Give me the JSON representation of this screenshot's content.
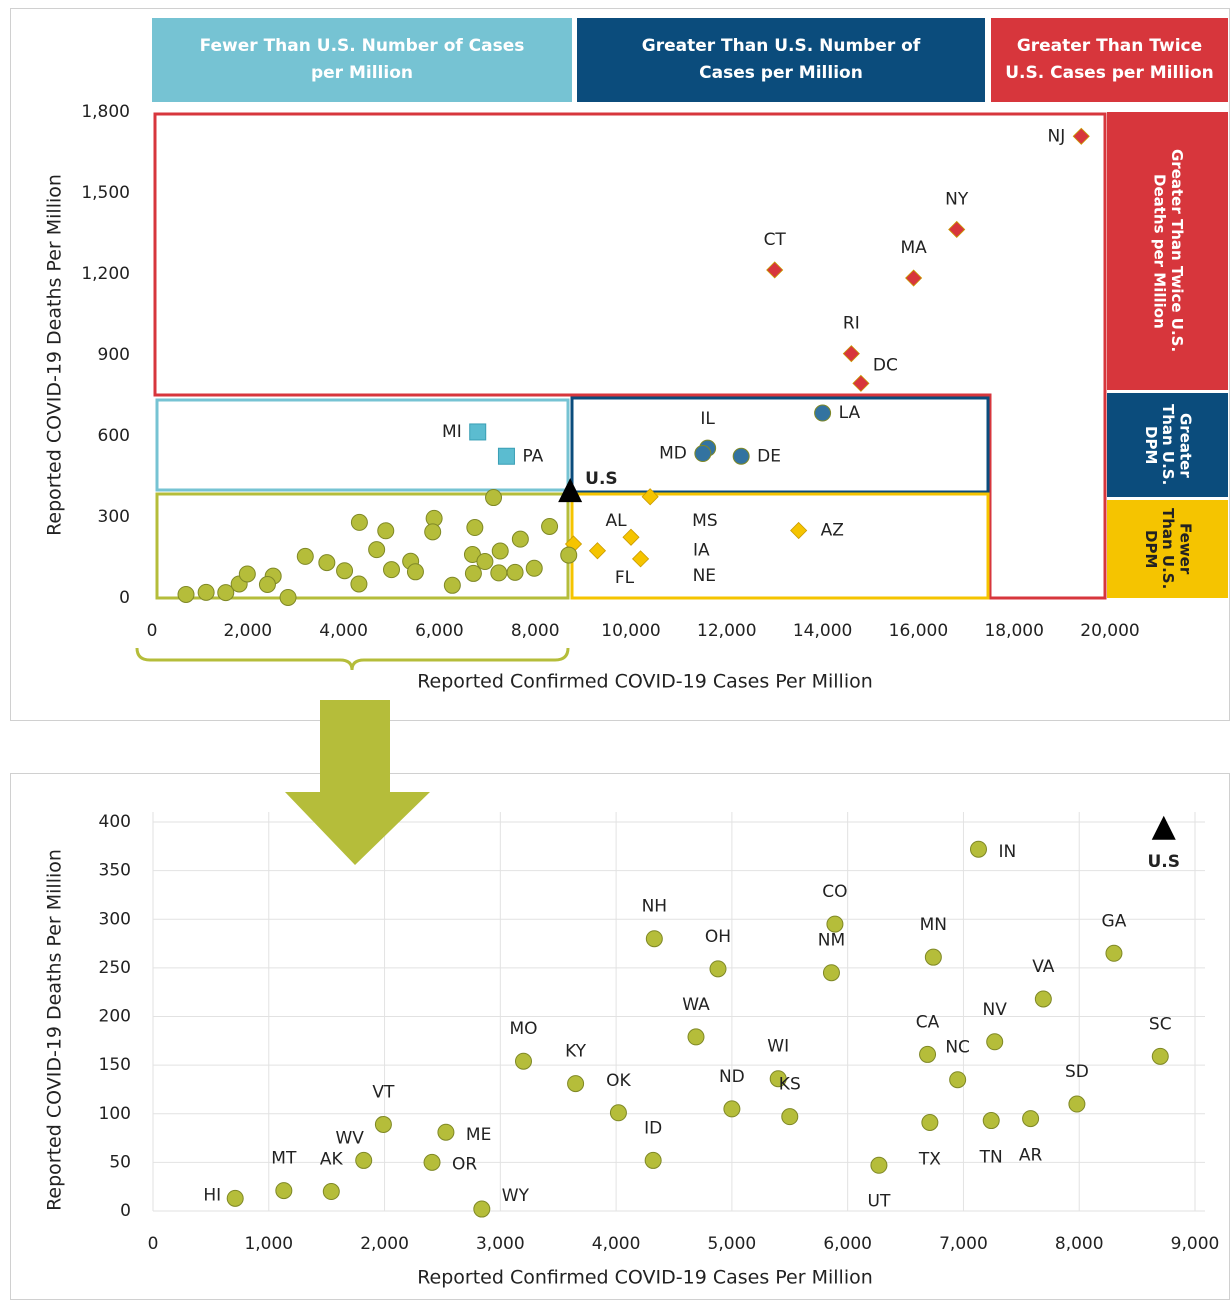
{
  "chart_data": [
    {
      "type": "scatter",
      "x_label": "Reported Confirmed COVID-19 Cases Per Million",
      "y_label": "Reported COVID-19 Deaths Per Million",
      "xlim": [
        0,
        20000
      ],
      "ylim": [
        0,
        1800
      ],
      "xticks": [
        0,
        {
          "value": 2000,
          "label": "2,000"
        },
        {
          "value": 4000,
          "label": "4,000"
        },
        {
          "value": 6000,
          "label": "6,000"
        },
        {
          "value": 8000,
          "label": "8,000"
        },
        {
          "value": 10000,
          "label": "10,000"
        },
        {
          "value": 12000,
          "label": "12,000"
        },
        {
          "value": 14000,
          "label": "14,000"
        },
        {
          "value": 16000,
          "label": "16,000"
        },
        {
          "value": 18000,
          "label": "18,000"
        },
        {
          "value": 20000,
          "label": "20,000"
        }
      ],
      "yticks": [
        0,
        300,
        600,
        900,
        {
          "value": 1200,
          "label": "1,200"
        },
        {
          "value": 1500,
          "label": "1,500"
        },
        {
          "value": 1800,
          "label": "1,800"
        }
      ],
      "grid": false,
      "top_headers": [
        {
          "text": "Fewer Than U.S. Number of Cases per Million",
          "color": "#76c3d3"
        },
        {
          "text": "Greater Than U.S. Number of Cases per Million",
          "color": "#0b4c7c"
        },
        {
          "text": "Greater Than Twice U.S. Cases per Million",
          "color": "#d7363c"
        }
      ],
      "side_headers": [
        {
          "text": "Greater Than Twice U.S. Deaths per Million",
          "color": "#d7363c"
        },
        {
          "text": "Greater Than U.S. DPM",
          "color": "#0b4c7c"
        },
        {
          "text": "Fewer Than U.S. DPM",
          "color": "#f5c400"
        }
      ],
      "series": [
        {
          "marker": "diamond",
          "color": "#d7363c",
          "labels": [
            "NJ",
            "NY",
            "MA",
            "CT",
            "RI",
            "DC"
          ],
          "x": [
            19400,
            16800,
            15900,
            13000,
            14600,
            14800
          ],
          "values": [
            1710,
            1365,
            1185,
            1215,
            905,
            795
          ]
        },
        {
          "marker": "circle",
          "color": "#3373a0",
          "labels": [
            "LA",
            "IL",
            "MD",
            "DE"
          ],
          "x": [
            14000,
            11600,
            11500,
            12300
          ],
          "values": [
            685,
            555,
            535,
            525
          ]
        },
        {
          "marker": "square",
          "color": "#5bbcd0",
          "labels": [
            "MI",
            "PA"
          ],
          "x": [
            6800,
            7400
          ],
          "values": [
            615,
            525
          ]
        },
        {
          "marker": "diamond",
          "color": "#f5c400",
          "labels": [
            "MS",
            "AZ",
            "AL",
            "IA",
            "FL",
            "NE"
          ],
          "x": [
            10400,
            13500,
            8800,
            10000,
            9300,
            10200
          ],
          "values": [
            375,
            250,
            200,
            225,
            175,
            145
          ]
        },
        {
          "marker": "circle",
          "color": "#b5bd3a",
          "x": [
            710,
            1130,
            1540,
            1820,
            1990,
            2530,
            2410,
            2840,
            3200,
            3650,
            4020,
            4320,
            4330,
            4880,
            4690,
            5000,
            5400,
            5500,
            5890,
            5860,
            6270,
            6740,
            6690,
            6710,
            6950,
            7130,
            7270,
            7240,
            7580,
            7690,
            8300,
            7980,
            8700
          ],
          "values": [
            13,
            21,
            20,
            52,
            89,
            81,
            50,
            2,
            154,
            131,
            101,
            52,
            280,
            249,
            179,
            105,
            136,
            97,
            295,
            245,
            47,
            261,
            161,
            91,
            135,
            372,
            174,
            93,
            95,
            218,
            265,
            110,
            159
          ]
        },
        {
          "marker": "triangle",
          "color": "#000000",
          "labels": [
            "U.S"
          ],
          "x": [
            8730
          ],
          "values": [
            392
          ]
        }
      ]
    },
    {
      "type": "scatter",
      "x_label": "Reported Confirmed COVID-19 Cases Per Million",
      "y_label": "Reported COVID-19 Deaths Per Million",
      "xlim": [
        0,
        9000
      ],
      "ylim": [
        0,
        400
      ],
      "xticks": [
        0,
        {
          "value": 1000,
          "label": "1,000"
        },
        {
          "value": 2000,
          "label": "2,000"
        },
        {
          "value": 3000,
          "label": "3,000"
        },
        {
          "value": 4000,
          "label": "4,000"
        },
        {
          "value": 5000,
          "label": "5,000"
        },
        {
          "value": 6000,
          "label": "6,000"
        },
        {
          "value": 7000,
          "label": "7,000"
        },
        {
          "value": 8000,
          "label": "8,000"
        },
        {
          "value": 9000,
          "label": "9,000"
        }
      ],
      "yticks": [
        0,
        50,
        100,
        150,
        200,
        250,
        300,
        350,
        400
      ],
      "grid": true,
      "series": [
        {
          "marker": "circle",
          "color": "#b5bd3a",
          "labels": [
            "HI",
            "MT",
            "AK",
            "WV",
            "VT",
            "ME",
            "OR",
            "WY",
            "MO",
            "KY",
            "OK",
            "ID",
            "NH",
            "OH",
            "WA",
            "ND",
            "WI",
            "KS",
            "CO",
            "NM",
            "UT",
            "MN",
            "CA",
            "TX",
            "NC",
            "IN",
            "NV",
            "TN",
            "AR",
            "VA",
            "GA",
            "SD",
            "SC"
          ],
          "x": [
            710,
            1130,
            1540,
            1820,
            1990,
            2530,
            2410,
            2840,
            3200,
            3650,
            4020,
            4320,
            4330,
            4880,
            4690,
            5000,
            5400,
            5500,
            5890,
            5860,
            6270,
            6740,
            6690,
            6710,
            6950,
            7130,
            7270,
            7240,
            7580,
            7690,
            8300,
            7980,
            8700
          ],
          "values": [
            13,
            21,
            20,
            52,
            89,
            81,
            50,
            2,
            154,
            131,
            101,
            52,
            280,
            249,
            179,
            105,
            136,
            97,
            295,
            245,
            47,
            261,
            161,
            91,
            135,
            372,
            174,
            93,
            95,
            218,
            265,
            110,
            159
          ]
        },
        {
          "marker": "triangle",
          "color": "#000000",
          "labels": [
            "U.S"
          ],
          "x": [
            8730
          ],
          "values": [
            392
          ]
        }
      ]
    }
  ]
}
